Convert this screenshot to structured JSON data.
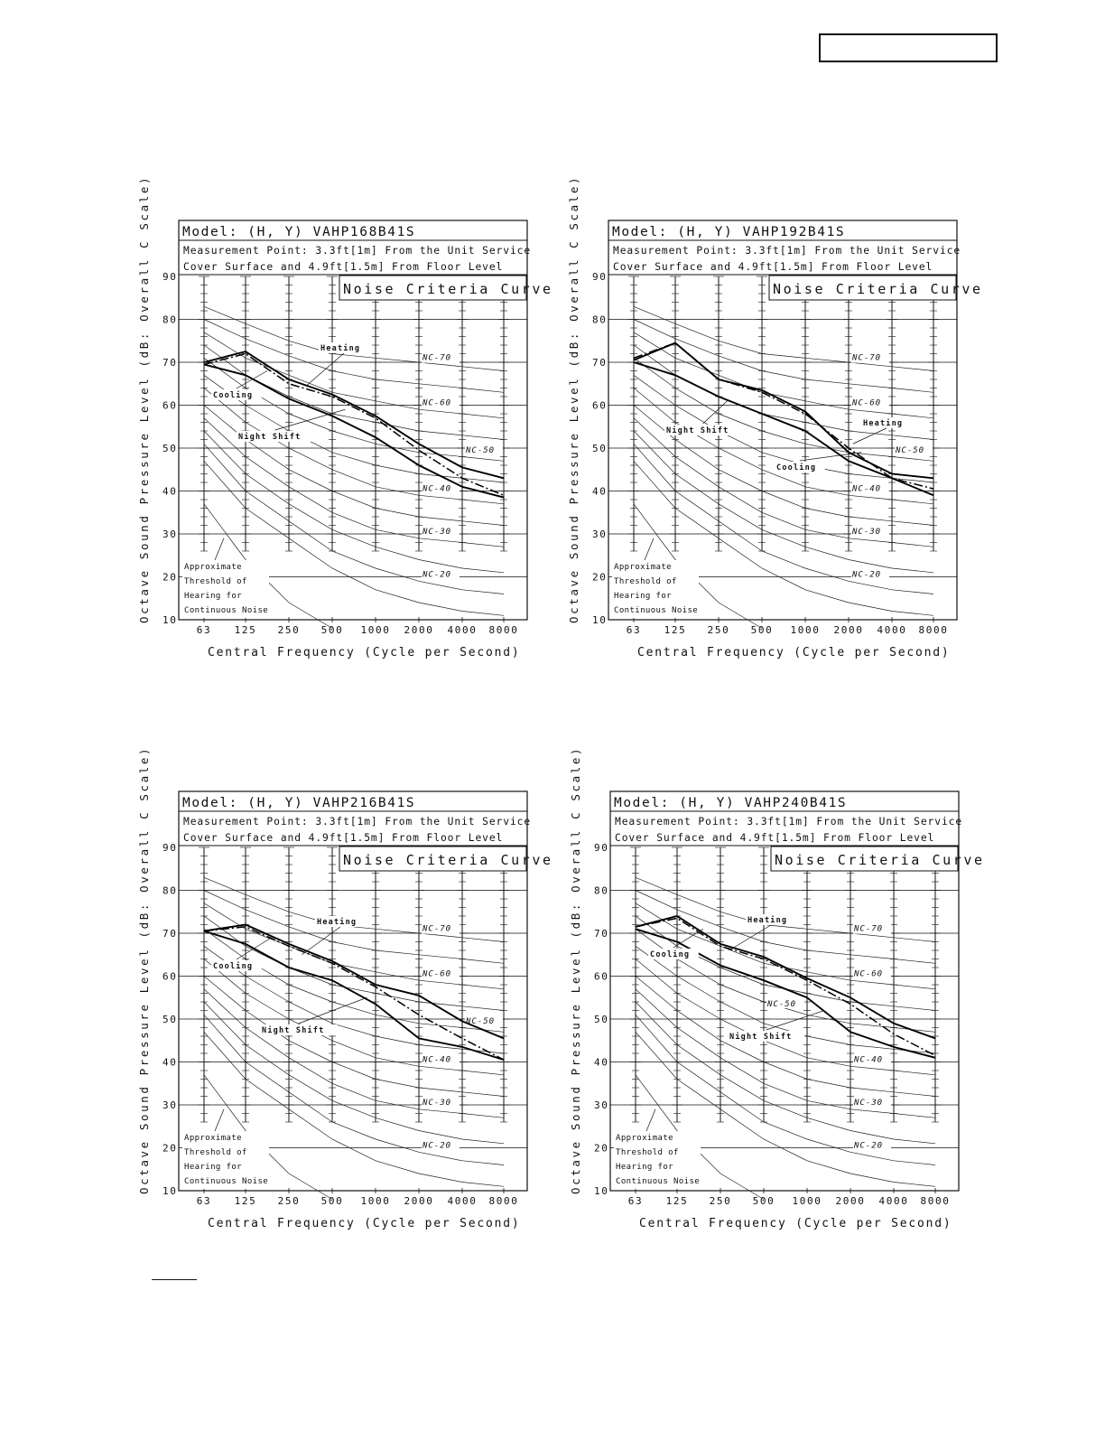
{
  "page": {
    "header_box_text": ""
  },
  "chart_data": [
    {
      "type": "line",
      "model": "Model: (H, Y) VAHP168B41S",
      "measurement_line1": "Measurement Point: 3.3ft[1m] From the Unit Service",
      "measurement_line2": "Cover Surface and 4.9ft[1.5m] From Floor Level",
      "curve_title": "Noise Criteria Curve",
      "ylabel": "Octave Sound Pressure Level (dB: Overall C Scale)",
      "xlabel": "Central Frequency (Cycle per Second)",
      "categories": [
        "63",
        "125",
        "250",
        "500",
        "1000",
        "2000",
        "4000",
        "8000"
      ],
      "y_ticks": [
        "10",
        "20",
        "30",
        "40",
        "50",
        "60",
        "70",
        "80",
        "90"
      ],
      "ylim": [
        10,
        90
      ],
      "series": [
        {
          "name": "Heating",
          "style": "solid",
          "values": [
            70.0,
            72.5,
            66.0,
            62.5,
            57.5,
            51.0,
            45.5,
            43.0
          ]
        },
        {
          "name": "Cooling",
          "style": "dashdot",
          "values": [
            69.5,
            72.0,
            65.0,
            62.0,
            57.0,
            49.5,
            43.0,
            39.0
          ]
        },
        {
          "name": "Night Shift",
          "style": "solid",
          "values": [
            69.5,
            67.0,
            61.5,
            57.5,
            52.5,
            46.0,
            41.0,
            38.5
          ]
        }
      ],
      "annotations": [
        "Heating",
        "Cooling",
        "Night Shift"
      ],
      "nc_labels": [
        "NC-70",
        "NC-60",
        "NC-50",
        "NC-40",
        "NC-30",
        "NC-20"
      ],
      "threshold_text": [
        "Approximate",
        "Threshold of",
        "Hearing for",
        "Continuous Noise"
      ]
    },
    {
      "type": "line",
      "model": "Model: (H, Y) VAHP192B41S",
      "measurement_line1": "Measurement Point: 3.3ft[1m] From the Unit Service",
      "measurement_line2": "Cover Surface and 4.9ft[1.5m] From Floor Level",
      "curve_title": "Noise Criteria Curve",
      "ylabel": "Octave Sound Pressure Level (dB: Overall C Scale)",
      "xlabel": "Central Frequency (Cycle per Second)",
      "categories": [
        "63",
        "125",
        "250",
        "500",
        "1000",
        "2000",
        "4000",
        "8000"
      ],
      "y_ticks": [
        "10",
        "20",
        "30",
        "40",
        "50",
        "60",
        "70",
        "80",
        "90"
      ],
      "ylim": [
        10,
        90
      ],
      "series": [
        {
          "name": "Heating",
          "style": "solid",
          "values": [
            70.5,
            74.5,
            66.0,
            63.5,
            58.5,
            49.0,
            44.0,
            43.0
          ]
        },
        {
          "name": "Cooling",
          "style": "dashdot",
          "values": [
            71.0,
            74.5,
            66.0,
            63.0,
            58.0,
            50.0,
            43.0,
            40.5
          ]
        },
        {
          "name": "Night Shift",
          "style": "solid",
          "values": [
            70.0,
            67.0,
            62.0,
            58.0,
            54.0,
            47.0,
            43.0,
            39.0
          ]
        }
      ],
      "annotations": [
        "Night Shift",
        "Heating",
        "Cooling"
      ],
      "nc_labels": [
        "NC-70",
        "NC-60",
        "NC-50",
        "NC-40",
        "NC-30",
        "NC-20"
      ],
      "threshold_text": [
        "Approximate",
        "Threshold of",
        "Hearing for",
        "Continuous Noise"
      ]
    },
    {
      "type": "line",
      "model": "Model: (H, Y) VAHP216B41S",
      "measurement_line1": "Measurement Point: 3.3ft[1m] From the Unit Service",
      "measurement_line2": "Cover Surface and 4.9ft[1.5m] From Floor Level",
      "curve_title": "Noise Criteria Curve",
      "ylabel": "Octave Sound Pressure Level (dB: Overall C Scale)",
      "xlabel": "Central Frequency (Cycle per Second)",
      "categories": [
        "63",
        "125",
        "250",
        "500",
        "1000",
        "2000",
        "4000",
        "8000"
      ],
      "y_ticks": [
        "10",
        "20",
        "30",
        "40",
        "50",
        "60",
        "70",
        "80",
        "90"
      ],
      "ylim": [
        10,
        90
      ],
      "series": [
        {
          "name": "Heating",
          "style": "solid",
          "values": [
            70.5,
            72.0,
            67.5,
            63.5,
            58.0,
            55.5,
            49.5,
            45.5
          ]
        },
        {
          "name": "Cooling",
          "style": "dashdot",
          "values": [
            70.5,
            71.5,
            67.0,
            63.0,
            57.5,
            51.0,
            45.5,
            40.5
          ]
        },
        {
          "name": "Night Shift",
          "style": "solid",
          "values": [
            70.5,
            67.5,
            62.0,
            59.0,
            53.5,
            45.5,
            43.5,
            40.5
          ]
        }
      ],
      "annotations": [
        "Heating",
        "Cooling",
        "Night Shift"
      ],
      "nc_labels": [
        "NC-70",
        "NC-60",
        "NC-50",
        "NC-40",
        "NC-30",
        "NC-20"
      ],
      "threshold_text": [
        "Approximate",
        "Threshold of",
        "Hearing for",
        "Continuous Noise"
      ]
    },
    {
      "type": "line",
      "model": "Model: (H, Y) VAHP240B41S",
      "measurement_line1": "Measurement Point: 3.3ft[1m] From the Unit Service",
      "measurement_line2": "Cover Surface and 4.9ft[1.5m] From Floor Level",
      "curve_title": "Noise Criteria Curve",
      "ylabel": "Octave Sound Pressure Level (dB: Overall C Scale)",
      "xlabel": "Central Frequency (Cycle per Second)",
      "categories": [
        "63",
        "125",
        "250",
        "500",
        "1000",
        "2000",
        "4000",
        "8000"
      ],
      "y_ticks": [
        "10",
        "20",
        "30",
        "40",
        "50",
        "60",
        "70",
        "80",
        "90"
      ],
      "ylim": [
        10,
        90
      ],
      "series": [
        {
          "name": "Heating",
          "style": "solid",
          "values": [
            71.5,
            74.0,
            67.5,
            64.5,
            59.5,
            55.0,
            49.0,
            45.5
          ]
        },
        {
          "name": "Cooling",
          "style": "dashdot",
          "values": [
            71.5,
            73.5,
            67.0,
            64.0,
            59.0,
            53.5,
            46.5,
            41.5
          ]
        },
        {
          "name": "Night Shift",
          "style": "solid",
          "values": [
            71.0,
            68.0,
            62.5,
            59.0,
            55.0,
            47.0,
            43.5,
            41.0
          ]
        }
      ],
      "annotations": [
        "Heating",
        "Cooling",
        "NC-50",
        "Night Shift"
      ],
      "nc_labels": [
        "NC-70",
        "NC-60",
        "NC-40",
        "NC-30",
        "NC-20"
      ],
      "threshold_text": [
        "Approximate",
        "Threshold of",
        "Hearing for",
        "Continuous Noise"
      ]
    }
  ]
}
